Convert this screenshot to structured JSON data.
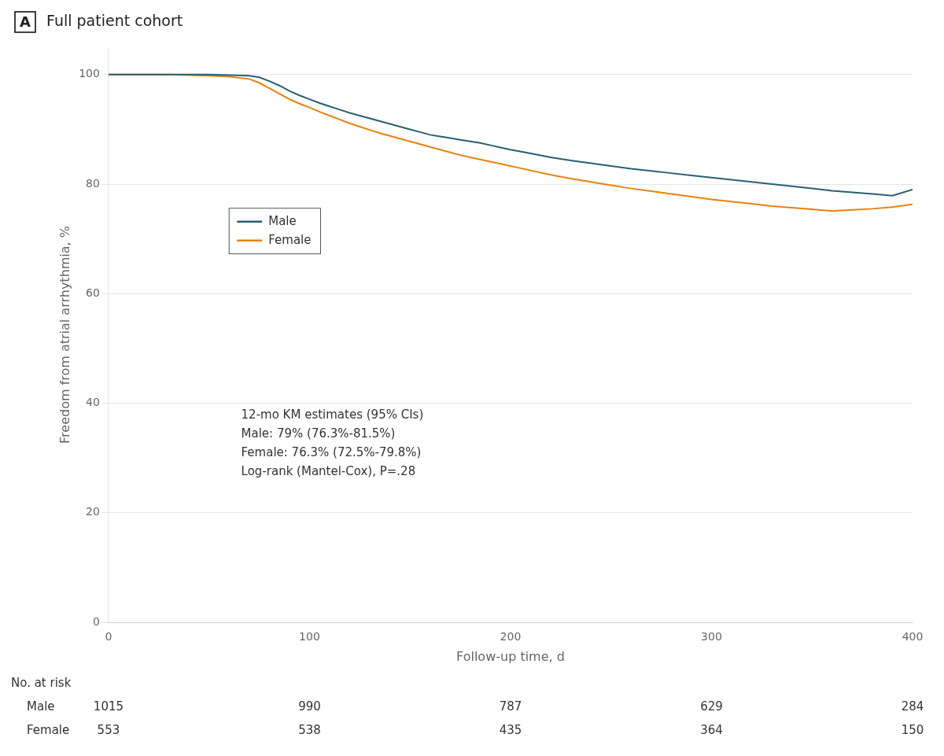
{
  "chart_data": {
    "type": "line",
    "panel_label": "A",
    "title": "Full patient cohort",
    "x_label": "Follow-up time, d",
    "y_label": "Freedom from atrial arrhythmia, %",
    "x": [
      0,
      10,
      20,
      30,
      40,
      50,
      60,
      70,
      75,
      80,
      85,
      90,
      95,
      100,
      105,
      110,
      115,
      120,
      125,
      130,
      135,
      140,
      145,
      150,
      155,
      160,
      165,
      170,
      175,
      180,
      185,
      190,
      195,
      200,
      210,
      220,
      230,
      240,
      250,
      260,
      270,
      280,
      290,
      300,
      310,
      320,
      330,
      340,
      350,
      360,
      370,
      380,
      390,
      400
    ],
    "series": [
      {
        "name": "Male",
        "color": "#2A5F72",
        "values": [
          100,
          100,
          100,
          100,
          100,
          100,
          99.9,
          99.8,
          99.5,
          98.8,
          98.0,
          97.0,
          96.2,
          95.5,
          94.8,
          94.2,
          93.6,
          93.0,
          92.5,
          92.0,
          91.5,
          91.0,
          90.5,
          90.0,
          89.5,
          89.0,
          88.7,
          88.4,
          88.1,
          87.8,
          87.5,
          87.1,
          86.7,
          86.3,
          85.6,
          84.9,
          84.3,
          83.8,
          83.3,
          82.8,
          82.4,
          82.0,
          81.6,
          81.2,
          80.8,
          80.4,
          80.0,
          79.6,
          79.2,
          78.8,
          78.5,
          78.2,
          77.9,
          79.0
        ]
      },
      {
        "name": "Female",
        "color": "#E8820C",
        "values": [
          100,
          100,
          100,
          100,
          99.9,
          99.8,
          99.6,
          99.2,
          98.5,
          97.5,
          96.5,
          95.5,
          94.7,
          94.0,
          93.2,
          92.5,
          91.8,
          91.1,
          90.5,
          89.9,
          89.3,
          88.8,
          88.3,
          87.8,
          87.3,
          86.8,
          86.3,
          85.8,
          85.3,
          84.9,
          84.5,
          84.1,
          83.7,
          83.3,
          82.5,
          81.7,
          81.0,
          80.4,
          79.8,
          79.2,
          78.7,
          78.2,
          77.7,
          77.2,
          76.8,
          76.4,
          76.0,
          75.7,
          75.4,
          75.1,
          75.3,
          75.5,
          75.8,
          76.3
        ]
      }
    ],
    "xlim": [
      0,
      400
    ],
    "xticks": [
      0,
      100,
      200,
      300,
      400
    ],
    "ylim": [
      0,
      105
    ],
    "yticks": [
      0,
      20,
      40,
      60,
      80,
      100
    ],
    "grid": "y",
    "legend": "center left",
    "annotation": "12-mo KM estimates (95% CIs)\nMale: 79% (76.3%-81.5%)\nFemale: 76.3% (72.5%-79.8%)\nLog-rank (Mantel-Cox), P=.28",
    "risk_table": {
      "title": "No. at risk",
      "x": [
        0,
        100,
        200,
        300,
        400
      ],
      "rows": [
        {
          "name": "Male",
          "values": [
            1015,
            990,
            787,
            629,
            284
          ]
        },
        {
          "name": "Female",
          "values": [
            553,
            538,
            435,
            364,
            150
          ]
        }
      ]
    }
  }
}
